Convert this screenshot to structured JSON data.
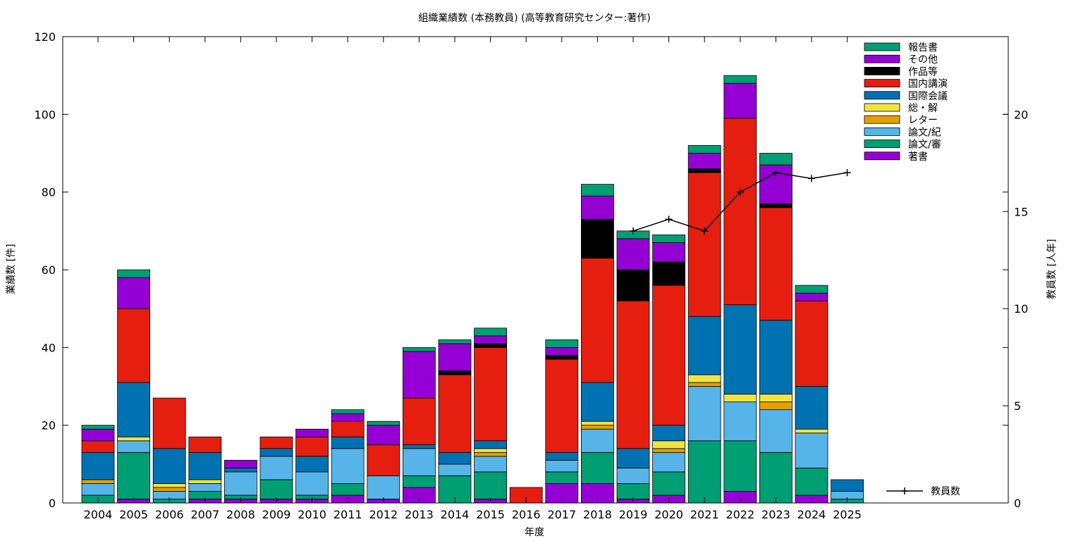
{
  "chart_data": {
    "type": "bar",
    "stacked": true,
    "title": "組織業績数 (本務教員) (高等教育研究センター:著作)",
    "xlabel": "年度",
    "ylabel": "業績数 [件]",
    "y2label": "教員数 [人年]",
    "ylim": [
      0,
      120
    ],
    "y2lim": [
      0,
      24
    ],
    "yticks": [
      "0",
      "20",
      "40",
      "60",
      "80",
      "100",
      "120"
    ],
    "y2ticks": [
      "0",
      "5",
      "10",
      "15",
      "20"
    ],
    "grid": false,
    "legend_position": "top-right",
    "categories": [
      "2004",
      "2005",
      "2006",
      "2007",
      "2008",
      "2009",
      "2010",
      "2011",
      "2012",
      "2013",
      "2014",
      "2015",
      "2016",
      "2017",
      "2018",
      "2019",
      "2020",
      "2021",
      "2022",
      "2023",
      "2024",
      "2025"
    ],
    "series": [
      {
        "name": "著書",
        "color": "#9400d3",
        "values": [
          0,
          1,
          0,
          1,
          1,
          1,
          1,
          2,
          1,
          4,
          0,
          1,
          0,
          5,
          5,
          1,
          2,
          0,
          3,
          0,
          2,
          0
        ]
      },
      {
        "name": "論文/審",
        "color": "#009e73",
        "values": [
          2,
          12,
          1,
          2,
          1,
          5,
          1,
          3,
          0,
          3,
          7,
          7,
          0,
          3,
          8,
          4,
          6,
          16,
          13,
          13,
          7,
          1
        ]
      },
      {
        "name": "論文/紀",
        "color": "#56b4e9",
        "values": [
          3,
          3,
          2,
          2,
          6,
          6,
          6,
          9,
          6,
          7,
          3,
          4,
          0,
          3,
          6,
          4,
          5,
          14,
          10,
          11,
          9,
          2
        ]
      },
      {
        "name": "レター",
        "color": "#e69f00",
        "values": [
          1,
          0,
          1,
          0,
          0,
          0,
          0,
          0,
          0,
          0,
          0,
          1,
          0,
          0,
          1,
          0,
          1,
          1,
          0,
          2,
          0,
          0
        ]
      },
      {
        "name": "総・解",
        "color": "#f0e442",
        "values": [
          0,
          1,
          1,
          1,
          0,
          0,
          0,
          0,
          0,
          0,
          0,
          1,
          0,
          0,
          1,
          0,
          2,
          2,
          2,
          2,
          1,
          0
        ]
      },
      {
        "name": "国際会議",
        "color": "#0072b2",
        "values": [
          7,
          14,
          9,
          7,
          1,
          2,
          4,
          3,
          0,
          1,
          3,
          2,
          0,
          2,
          10,
          5,
          4,
          15,
          23,
          19,
          11,
          3
        ]
      },
      {
        "name": "国内講演",
        "color": "#e51e10",
        "values": [
          3,
          19,
          13,
          4,
          0,
          3,
          5,
          4,
          8,
          12,
          20,
          24,
          4,
          24,
          32,
          38,
          36,
          37,
          48,
          29,
          22,
          0
        ]
      },
      {
        "name": "作品等",
        "color": "#000000",
        "values": [
          0,
          0,
          0,
          0,
          0,
          0,
          0,
          0,
          0,
          0,
          1,
          1,
          0,
          1,
          10,
          8,
          6,
          1,
          0,
          1,
          0,
          0
        ]
      },
      {
        "name": "その他",
        "color": "#9400d3",
        "values": [
          3,
          8,
          0,
          0,
          2,
          0,
          2,
          2,
          5,
          12,
          7,
          2,
          0,
          2,
          6,
          8,
          5,
          4,
          9,
          10,
          2,
          0
        ]
      },
      {
        "name": "報告書",
        "color": "#009e73",
        "values": [
          1,
          2,
          0,
          0,
          0,
          0,
          0,
          1,
          1,
          1,
          1,
          2,
          0,
          2,
          3,
          2,
          2,
          2,
          2,
          3,
          2,
          0
        ]
      }
    ],
    "line": {
      "name": "教員数",
      "color": "#000000",
      "axis": "y2",
      "x": [
        "2019",
        "2020",
        "2021",
        "2022",
        "2023",
        "2024",
        "2025"
      ],
      "values": [
        14.0,
        14.6,
        14.0,
        16.0,
        17.0,
        16.7,
        17.0
      ]
    }
  }
}
